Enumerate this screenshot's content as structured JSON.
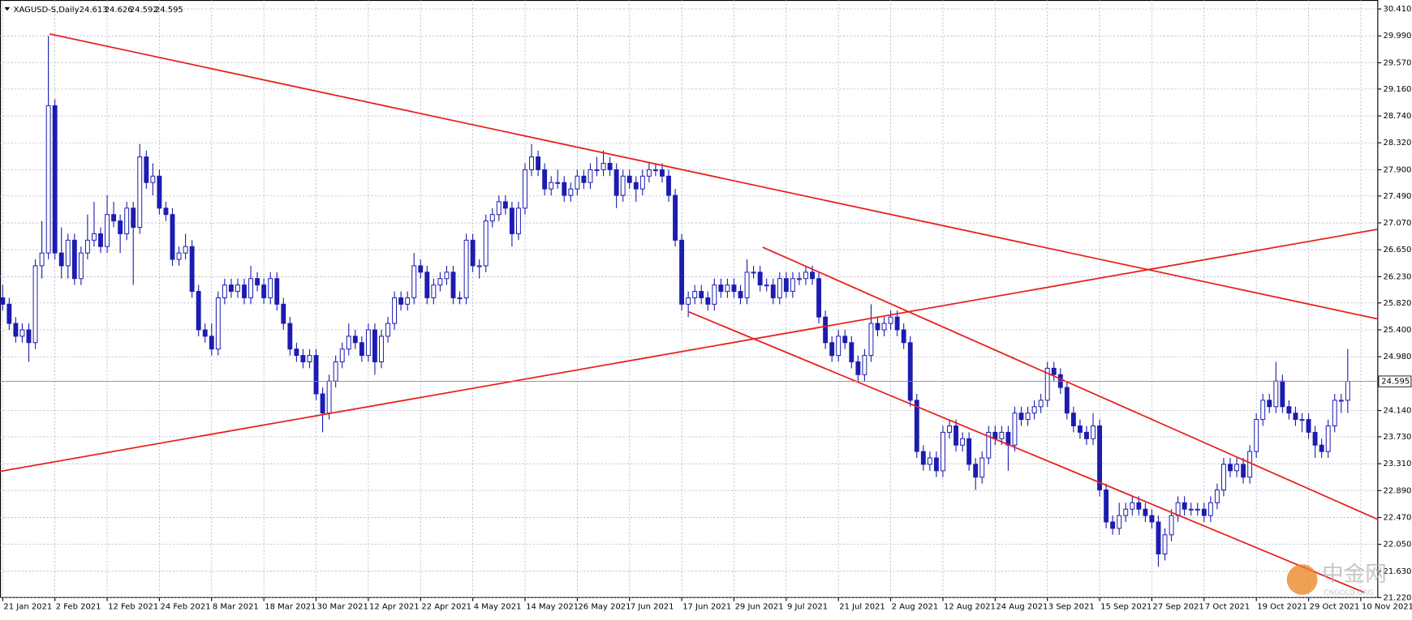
{
  "chart_data": {
    "type": "candlestick",
    "title": "XAGUSD-S,Daily",
    "readout": [
      24.613,
      24.626,
      24.592,
      24.595
    ],
    "current_price": {
      "value": 24.595,
      "label": "24.595"
    },
    "watermark": "中金网",
    "watermark_sub": "CNGOLD.ORG",
    "color": "#1c1cb0",
    "up_fill": "#ffffff",
    "line_color": "#e8201c",
    "grid": true,
    "xlim": [
      -0.41,
      210.6
    ],
    "ylim": [
      21.22,
      30.55
    ],
    "xticks": [
      {
        "value": 0,
        "label": "21 Jan 2021"
      },
      {
        "value": 8,
        "label": "2 Feb 2021"
      },
      {
        "value": 16,
        "label": "12 Feb 2021"
      },
      {
        "value": 24,
        "label": "24 Feb 2021"
      },
      {
        "value": 32,
        "label": "8 Mar 2021"
      },
      {
        "value": 40,
        "label": "18 Mar 2021"
      },
      {
        "value": 48,
        "label": "30 Mar 2021"
      },
      {
        "value": 56,
        "label": "12 Apr 2021"
      },
      {
        "value": 64,
        "label": "22 Apr 2021"
      },
      {
        "value": 72,
        "label": "4 May 2021"
      },
      {
        "value": 80,
        "label": "14 May 2021"
      },
      {
        "value": 88,
        "label": "26 May 2021"
      },
      {
        "value": 96,
        "label": "7 Jun 2021"
      },
      {
        "value": 104,
        "label": "17 Jun 2021"
      },
      {
        "value": 112,
        "label": "29 Jun 2021"
      },
      {
        "value": 120,
        "label": "9 Jul 2021"
      },
      {
        "value": 128,
        "label": "21 Jul 2021"
      },
      {
        "value": 136,
        "label": "2 Aug 2021"
      },
      {
        "value": 144,
        "label": "12 Aug 2021"
      },
      {
        "value": 152,
        "label": "24 Aug 2021"
      },
      {
        "value": 160,
        "label": "3 Sep 2021"
      },
      {
        "value": 168,
        "label": "15 Sep 2021"
      },
      {
        "value": 176,
        "label": "27 Sep 2021"
      },
      {
        "value": 184,
        "label": "7 Oct 2021"
      },
      {
        "value": 192,
        "label": "19 Oct 2021"
      },
      {
        "value": 200,
        "label": "29 Oct 2021"
      },
      {
        "value": 208,
        "label": "10 Nov 2021"
      }
    ],
    "yticks": [
      {
        "value": 30.41,
        "label": "30.410"
      },
      {
        "value": 29.99,
        "label": "29.990"
      },
      {
        "value": 29.57,
        "label": "29.570"
      },
      {
        "value": 29.16,
        "label": "29.160"
      },
      {
        "value": 28.74,
        "label": "28.740"
      },
      {
        "value": 28.32,
        "label": "28.320"
      },
      {
        "value": 27.9,
        "label": "27.900"
      },
      {
        "value": 27.49,
        "label": "27.490"
      },
      {
        "value": 27.07,
        "label": "27.070"
      },
      {
        "value": 26.65,
        "label": "26.650"
      },
      {
        "value": 26.23,
        "label": "26.230"
      },
      {
        "value": 25.82,
        "label": "25.820"
      },
      {
        "value": 25.4,
        "label": "25.400"
      },
      {
        "value": 24.98,
        "label": "24.980"
      },
      {
        "value": 24.14,
        "label": "24.140"
      },
      {
        "value": 23.73,
        "label": "23.730"
      },
      {
        "value": 23.31,
        "label": "23.310"
      },
      {
        "value": 22.89,
        "label": "22.890"
      },
      {
        "value": 22.47,
        "label": "22.470"
      },
      {
        "value": 22.05,
        "label": "22.050"
      },
      {
        "value": 21.63,
        "label": "21.630"
      },
      {
        "value": 21.22,
        "label": "21.220"
      }
    ],
    "trendlines": [
      {
        "x": [
          7.2,
          210.6
        ],
        "y": [
          30.02,
          25.57
        ]
      },
      {
        "x": [
          -0.41,
          210.6
        ],
        "y": [
          23.19,
          26.97
        ]
      },
      {
        "x": [
          116.4,
          210.6
        ],
        "y": [
          26.69,
          22.44
        ]
      },
      {
        "x": [
          105.1,
          208.5
        ],
        "y": [
          25.68,
          21.3
        ]
      }
    ],
    "ohlc": [
      [
        25.9,
        26.1,
        25.7,
        25.8
      ],
      [
        25.8,
        25.9,
        25.4,
        25.5
      ],
      [
        25.5,
        25.6,
        25.2,
        25.3
      ],
      [
        25.3,
        25.5,
        25.2,
        25.4
      ],
      [
        25.4,
        25.5,
        24.9,
        25.2
      ],
      [
        25.2,
        26.5,
        25.1,
        26.4
      ],
      [
        26.4,
        27.1,
        26.2,
        26.6
      ],
      [
        26.6,
        29.99,
        26.5,
        28.9
      ],
      [
        28.9,
        29.0,
        26.5,
        26.6
      ],
      [
        26.6,
        27.0,
        26.2,
        26.4
      ],
      [
        26.4,
        26.9,
        26.2,
        26.8
      ],
      [
        26.8,
        26.9,
        26.1,
        26.2
      ],
      [
        26.2,
        26.7,
        26.1,
        26.6
      ],
      [
        26.6,
        27.2,
        26.5,
        26.8
      ],
      [
        26.8,
        27.4,
        26.7,
        26.9
      ],
      [
        26.9,
        27.0,
        26.6,
        26.7
      ],
      [
        26.7,
        27.5,
        26.6,
        27.2
      ],
      [
        27.2,
        27.4,
        27.0,
        27.1
      ],
      [
        27.1,
        27.2,
        26.6,
        26.9
      ],
      [
        26.9,
        27.4,
        26.8,
        27.3
      ],
      [
        27.3,
        27.4,
        26.1,
        27.0
      ],
      [
        27.0,
        28.3,
        26.9,
        28.1
      ],
      [
        28.1,
        28.2,
        27.6,
        27.7
      ],
      [
        27.7,
        28.0,
        27.5,
        27.8
      ],
      [
        27.8,
        27.9,
        27.2,
        27.3
      ],
      [
        27.3,
        27.4,
        27.1,
        27.2
      ],
      [
        27.2,
        27.3,
        26.4,
        26.5
      ],
      [
        26.5,
        26.7,
        26.4,
        26.6
      ],
      [
        26.6,
        26.9,
        26.5,
        26.7
      ],
      [
        26.7,
        26.8,
        25.9,
        26.0
      ],
      [
        26.0,
        26.1,
        25.3,
        25.4
      ],
      [
        25.4,
        25.5,
        25.2,
        25.3
      ],
      [
        25.3,
        25.5,
        25.0,
        25.1
      ],
      [
        25.1,
        26.0,
        25.0,
        25.9
      ],
      [
        25.9,
        26.2,
        25.8,
        26.1
      ],
      [
        26.1,
        26.2,
        25.9,
        26.0
      ],
      [
        26.0,
        26.2,
        25.9,
        26.1
      ],
      [
        26.1,
        26.2,
        25.8,
        25.9
      ],
      [
        25.9,
        26.4,
        25.8,
        26.2
      ],
      [
        26.2,
        26.3,
        26.0,
        26.1
      ],
      [
        26.1,
        26.2,
        25.8,
        25.9
      ],
      [
        25.9,
        26.3,
        25.8,
        26.2
      ],
      [
        26.2,
        26.3,
        25.7,
        25.8
      ],
      [
        25.8,
        25.9,
        25.4,
        25.5
      ],
      [
        25.5,
        25.6,
        25.0,
        25.1
      ],
      [
        25.1,
        25.2,
        24.9,
        25.0
      ],
      [
        25.0,
        25.1,
        24.8,
        24.9
      ],
      [
        24.9,
        25.1,
        24.8,
        25.0
      ],
      [
        25.0,
        25.1,
        24.3,
        24.4
      ],
      [
        24.4,
        24.5,
        23.8,
        24.1
      ],
      [
        24.1,
        24.7,
        24.0,
        24.6
      ],
      [
        24.6,
        25.0,
        24.5,
        24.9
      ],
      [
        24.9,
        25.2,
        24.8,
        25.1
      ],
      [
        25.1,
        25.5,
        25.0,
        25.3
      ],
      [
        25.3,
        25.4,
        25.1,
        25.2
      ],
      [
        25.2,
        25.3,
        24.9,
        25.0
      ],
      [
        25.0,
        25.5,
        24.9,
        25.4
      ],
      [
        25.4,
        25.5,
        24.7,
        24.9
      ],
      [
        24.9,
        25.4,
        24.8,
        25.3
      ],
      [
        25.3,
        25.6,
        25.2,
        25.5
      ],
      [
        25.5,
        26.0,
        25.4,
        25.9
      ],
      [
        25.9,
        26.0,
        25.7,
        25.8
      ],
      [
        25.8,
        26.0,
        25.7,
        25.9
      ],
      [
        25.9,
        26.6,
        25.8,
        26.4
      ],
      [
        26.4,
        26.5,
        26.2,
        26.3
      ],
      [
        26.3,
        26.4,
        25.8,
        25.9
      ],
      [
        25.9,
        26.2,
        25.8,
        26.1
      ],
      [
        26.1,
        26.3,
        26.0,
        26.2
      ],
      [
        26.2,
        26.4,
        26.1,
        26.3
      ],
      [
        26.3,
        26.4,
        25.8,
        25.9
      ],
      [
        25.9,
        26.0,
        25.8,
        25.9
      ],
      [
        25.9,
        26.9,
        25.8,
        26.8
      ],
      [
        26.8,
        26.9,
        26.3,
        26.4
      ],
      [
        26.4,
        26.5,
        26.2,
        26.4
      ],
      [
        26.4,
        27.2,
        26.3,
        27.1
      ],
      [
        27.1,
        27.3,
        27.0,
        27.2
      ],
      [
        27.2,
        27.5,
        27.1,
        27.4
      ],
      [
        27.4,
        27.5,
        27.2,
        27.3
      ],
      [
        27.3,
        27.4,
        26.7,
        26.9
      ],
      [
        26.9,
        27.4,
        26.8,
        27.3
      ],
      [
        27.3,
        28.0,
        27.2,
        27.9
      ],
      [
        27.9,
        28.3,
        27.8,
        28.1
      ],
      [
        28.1,
        28.2,
        27.8,
        27.9
      ],
      [
        27.9,
        28.0,
        27.5,
        27.6
      ],
      [
        27.6,
        27.8,
        27.5,
        27.7
      ],
      [
        27.7,
        27.9,
        27.6,
        27.7
      ],
      [
        27.7,
        27.8,
        27.4,
        27.5
      ],
      [
        27.5,
        27.7,
        27.4,
        27.6
      ],
      [
        27.6,
        27.9,
        27.5,
        27.8
      ],
      [
        27.8,
        27.9,
        27.6,
        27.7
      ],
      [
        27.7,
        28.0,
        27.6,
        27.9
      ],
      [
        27.9,
        28.1,
        27.8,
        27.9
      ],
      [
        27.9,
        28.2,
        27.8,
        28.0
      ],
      [
        28.0,
        28.1,
        27.8,
        27.9
      ],
      [
        27.9,
        28.0,
        27.3,
        27.5
      ],
      [
        27.5,
        27.9,
        27.4,
        27.8
      ],
      [
        27.8,
        27.9,
        27.6,
        27.7
      ],
      [
        27.7,
        27.8,
        27.4,
        27.6
      ],
      [
        27.6,
        27.9,
        27.5,
        27.8
      ],
      [
        27.8,
        28.0,
        27.7,
        27.9
      ],
      [
        27.9,
        28.0,
        27.8,
        27.9
      ],
      [
        27.9,
        28.0,
        27.7,
        27.8
      ],
      [
        27.8,
        27.9,
        27.4,
        27.5
      ],
      [
        27.5,
        27.6,
        26.7,
        26.8
      ],
      [
        26.8,
        26.9,
        25.7,
        25.8
      ],
      [
        25.8,
        26.0,
        25.6,
        25.9
      ],
      [
        25.9,
        26.1,
        25.8,
        26.0
      ],
      [
        26.0,
        26.1,
        25.8,
        25.9
      ],
      [
        25.9,
        26.0,
        25.7,
        25.8
      ],
      [
        25.8,
        26.2,
        25.7,
        26.1
      ],
      [
        26.1,
        26.2,
        25.9,
        26.0
      ],
      [
        26.0,
        26.2,
        25.9,
        26.1
      ],
      [
        26.1,
        26.2,
        25.9,
        26.0
      ],
      [
        26.0,
        26.1,
        25.8,
        25.9
      ],
      [
        25.9,
        26.5,
        25.8,
        26.3
      ],
      [
        26.3,
        26.4,
        26.2,
        26.3
      ],
      [
        26.3,
        26.4,
        26.0,
        26.1
      ],
      [
        26.1,
        26.2,
        26.0,
        26.1
      ],
      [
        26.1,
        26.2,
        25.8,
        25.9
      ],
      [
        25.9,
        26.3,
        25.8,
        26.2
      ],
      [
        26.2,
        26.3,
        25.9,
        26.0
      ],
      [
        26.0,
        26.3,
        25.9,
        26.2
      ],
      [
        26.2,
        26.3,
        26.1,
        26.2
      ],
      [
        26.2,
        26.4,
        26.1,
        26.3
      ],
      [
        26.3,
        26.4,
        26.1,
        26.2
      ],
      [
        26.2,
        26.3,
        25.5,
        25.6
      ],
      [
        25.6,
        25.7,
        25.1,
        25.2
      ],
      [
        25.2,
        25.3,
        24.9,
        25.0
      ],
      [
        25.0,
        25.4,
        24.9,
        25.3
      ],
      [
        25.3,
        25.4,
        25.1,
        25.2
      ],
      [
        25.2,
        25.3,
        24.8,
        24.9
      ],
      [
        24.9,
        25.0,
        24.6,
        24.7
      ],
      [
        24.7,
        25.1,
        24.6,
        25.0
      ],
      [
        25.0,
        25.8,
        24.9,
        25.5
      ],
      [
        25.5,
        25.6,
        25.3,
        25.4
      ],
      [
        25.4,
        25.6,
        25.3,
        25.5
      ],
      [
        25.5,
        25.7,
        25.4,
        25.6
      ],
      [
        25.6,
        25.7,
        25.3,
        25.4
      ],
      [
        25.4,
        25.5,
        25.1,
        25.2
      ],
      [
        25.2,
        25.3,
        24.2,
        24.3
      ],
      [
        24.3,
        24.4,
        23.4,
        23.5
      ],
      [
        23.5,
        23.6,
        23.2,
        23.3
      ],
      [
        23.3,
        23.5,
        23.2,
        23.4
      ],
      [
        23.4,
        23.5,
        23.1,
        23.2
      ],
      [
        23.2,
        23.9,
        23.1,
        23.8
      ],
      [
        23.8,
        24.0,
        23.7,
        23.9
      ],
      [
        23.9,
        24.0,
        23.5,
        23.6
      ],
      [
        23.6,
        23.8,
        23.5,
        23.7
      ],
      [
        23.7,
        23.8,
        23.2,
        23.3
      ],
      [
        23.3,
        23.4,
        22.9,
        23.1
      ],
      [
        23.1,
        23.5,
        23.0,
        23.4
      ],
      [
        23.4,
        23.9,
        23.3,
        23.8
      ],
      [
        23.8,
        23.9,
        23.6,
        23.7
      ],
      [
        23.7,
        23.9,
        23.6,
        23.8
      ],
      [
        23.8,
        23.9,
        23.2,
        23.6
      ],
      [
        23.6,
        24.2,
        23.5,
        24.1
      ],
      [
        24.1,
        24.2,
        23.9,
        24.0
      ],
      [
        24.0,
        24.2,
        23.9,
        24.1
      ],
      [
        24.1,
        24.3,
        24.0,
        24.2
      ],
      [
        24.2,
        24.4,
        24.1,
        24.3
      ],
      [
        24.3,
        24.9,
        24.2,
        24.8
      ],
      [
        24.8,
        24.9,
        24.6,
        24.7
      ],
      [
        24.7,
        24.8,
        24.4,
        24.5
      ],
      [
        24.5,
        24.6,
        24.0,
        24.1
      ],
      [
        24.1,
        24.2,
        23.8,
        23.9
      ],
      [
        23.9,
        24.0,
        23.7,
        23.8
      ],
      [
        23.8,
        23.9,
        23.6,
        23.7
      ],
      [
        23.7,
        24.1,
        23.6,
        23.9
      ],
      [
        23.9,
        24.0,
        22.8,
        22.9
      ],
      [
        22.9,
        23.0,
        22.3,
        22.4
      ],
      [
        22.4,
        22.5,
        22.2,
        22.3
      ],
      [
        22.3,
        22.7,
        22.2,
        22.5
      ],
      [
        22.5,
        22.7,
        22.4,
        22.6
      ],
      [
        22.6,
        22.8,
        22.5,
        22.7
      ],
      [
        22.7,
        22.8,
        22.5,
        22.6
      ],
      [
        22.6,
        22.7,
        22.4,
        22.5
      ],
      [
        22.5,
        22.6,
        22.3,
        22.4
      ],
      [
        22.4,
        22.5,
        21.7,
        21.9
      ],
      [
        21.9,
        22.3,
        21.8,
        22.2
      ],
      [
        22.2,
        22.6,
        22.1,
        22.5
      ],
      [
        22.5,
        22.8,
        22.4,
        22.7
      ],
      [
        22.7,
        22.8,
        22.5,
        22.6
      ],
      [
        22.6,
        22.7,
        22.5,
        22.6
      ],
      [
        22.6,
        22.7,
        22.5,
        22.6
      ],
      [
        22.6,
        22.7,
        22.4,
        22.5
      ],
      [
        22.5,
        22.8,
        22.4,
        22.7
      ],
      [
        22.7,
        23.0,
        22.6,
        22.9
      ],
      [
        22.9,
        23.4,
        22.8,
        23.3
      ],
      [
        23.3,
        23.4,
        23.1,
        23.2
      ],
      [
        23.2,
        23.4,
        23.1,
        23.3
      ],
      [
        23.3,
        23.4,
        23.0,
        23.1
      ],
      [
        23.1,
        23.6,
        23.0,
        23.5
      ],
      [
        23.5,
        24.1,
        23.4,
        24.0
      ],
      [
        24.0,
        24.4,
        23.9,
        24.3
      ],
      [
        24.3,
        24.4,
        24.1,
        24.2
      ],
      [
        24.2,
        24.9,
        24.1,
        24.6
      ],
      [
        24.6,
        24.7,
        24.1,
        24.2
      ],
      [
        24.2,
        24.3,
        24.0,
        24.1
      ],
      [
        24.1,
        24.2,
        23.9,
        24.0
      ],
      [
        24.0,
        24.1,
        23.8,
        24.0
      ],
      [
        24.0,
        24.1,
        23.7,
        23.8
      ],
      [
        23.8,
        23.9,
        23.4,
        23.6
      ],
      [
        23.6,
        23.7,
        23.4,
        23.5
      ],
      [
        23.5,
        24.0,
        23.4,
        23.9
      ],
      [
        23.9,
        24.4,
        23.8,
        24.3
      ],
      [
        24.3,
        24.4,
        24.1,
        24.3
      ],
      [
        24.3,
        25.1,
        24.1,
        24.595
      ]
    ]
  }
}
